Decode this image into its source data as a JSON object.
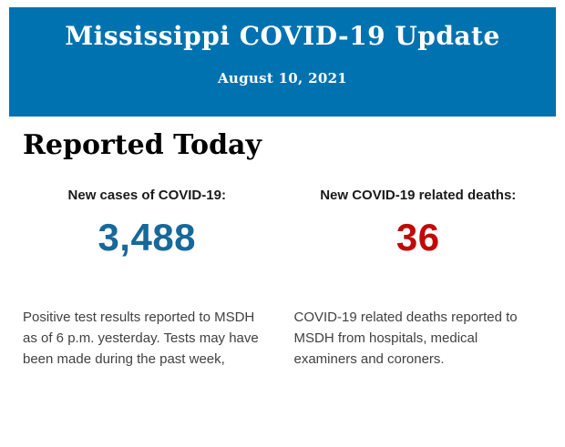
{
  "header": {
    "title": "Mississippi COVID-19 Update",
    "date": "August 10, 2021",
    "background_color": "#0072b0",
    "text_color": "#ffffff"
  },
  "section": {
    "heading": "Reported Today"
  },
  "stats": {
    "0": {
      "label": "New cases of COVID-19:",
      "value": "3,488",
      "value_color": "#17689b",
      "description": "Positive test results reported to MSDH as of 6 p.m. yesterday. Tests may have been made during the past week,"
    },
    "1": {
      "label": "New COVID-19 related deaths:",
      "value": "36",
      "value_color": "#c00a0a",
      "description": "COVID-19 related deaths reported to MSDH from hospitals, medical examiners and coroners."
    }
  }
}
